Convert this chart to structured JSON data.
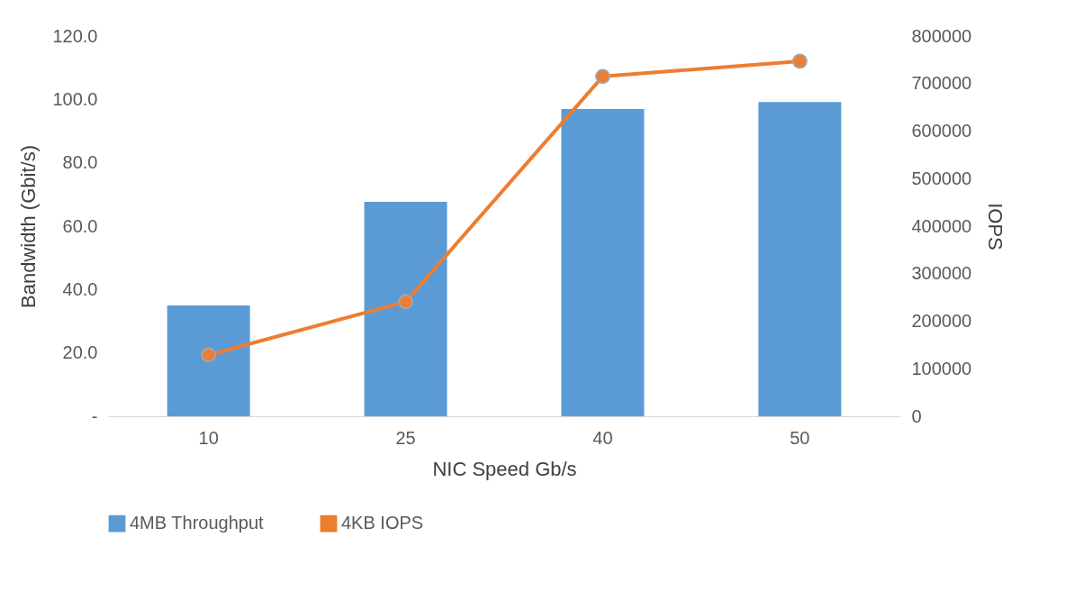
{
  "chart_data": {
    "type": "bar",
    "xlabel": "NIC Speed Gb/s",
    "ylabel": "Bandwidth (Gbit/s)",
    "y2label": "IOPS",
    "categories": [
      "10",
      "25",
      "40",
      "50"
    ],
    "series": [
      {
        "name": "4MB Throughput",
        "type": "bar",
        "color": "#5b9bd5",
        "values": [
          35.0,
          67.7,
          97.0,
          99.2
        ]
      },
      {
        "name": "4KB IOPS",
        "type": "line",
        "axis": "y2",
        "color": "#ed7d31",
        "values": [
          129000,
          241000,
          715000,
          747000
        ]
      }
    ],
    "ylim": [
      0,
      120
    ],
    "yticks": [
      {
        "value": 0,
        "label": "-"
      },
      {
        "value": 20,
        "label": "20.0"
      },
      {
        "value": 40,
        "label": "40.0"
      },
      {
        "value": 60,
        "label": "60.0"
      },
      {
        "value": 80,
        "label": "80.0"
      },
      {
        "value": 100,
        "label": "100.0"
      },
      {
        "value": 120,
        "label": "120.0"
      }
    ],
    "y2lim": [
      0,
      800000
    ],
    "y2ticks": [
      0,
      100000,
      200000,
      300000,
      400000,
      500000,
      600000,
      700000,
      800000
    ],
    "legend": "bottom",
    "grid": false,
    "marker": "circle",
    "line_style": "solid"
  }
}
